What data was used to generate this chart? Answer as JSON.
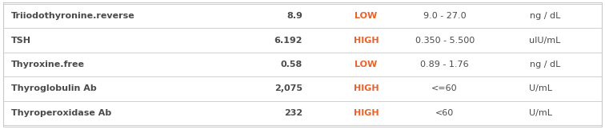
{
  "rows": [
    {
      "test": "Triiodothyronine.reverse",
      "value": "8.9",
      "flag": "LOW",
      "range": "9.0 - 27.0",
      "unit": "ng / dL"
    },
    {
      "test": "TSH",
      "value": "6.192",
      "flag": "HIGH",
      "range": "0.350 - 5.500",
      "unit": "uIU/mL"
    },
    {
      "test": "Thyroxine.free",
      "value": "0.58",
      "flag": "LOW",
      "range": "0.89 - 1.76",
      "unit": "ng / dL"
    },
    {
      "test": "Thyroglobulin Ab",
      "value": "2,075",
      "flag": "HIGH",
      "range": "<=60",
      "unit": "U/mL"
    },
    {
      "test": "Thyroperoxidase Ab",
      "value": "232",
      "flag": "HIGH",
      "range": "<60",
      "unit": "U/mL"
    }
  ],
  "col_x": {
    "test": 0.018,
    "value": 0.5,
    "flag": 0.605,
    "range": 0.735,
    "unit": 0.875
  },
  "flag_color": "#e8622a",
  "text_color": "#4a4a4a",
  "line_color": "#c8c8c8",
  "bg_color": "#ffffff",
  "border_color": "#c8c8c8",
  "font_size": 8.0
}
